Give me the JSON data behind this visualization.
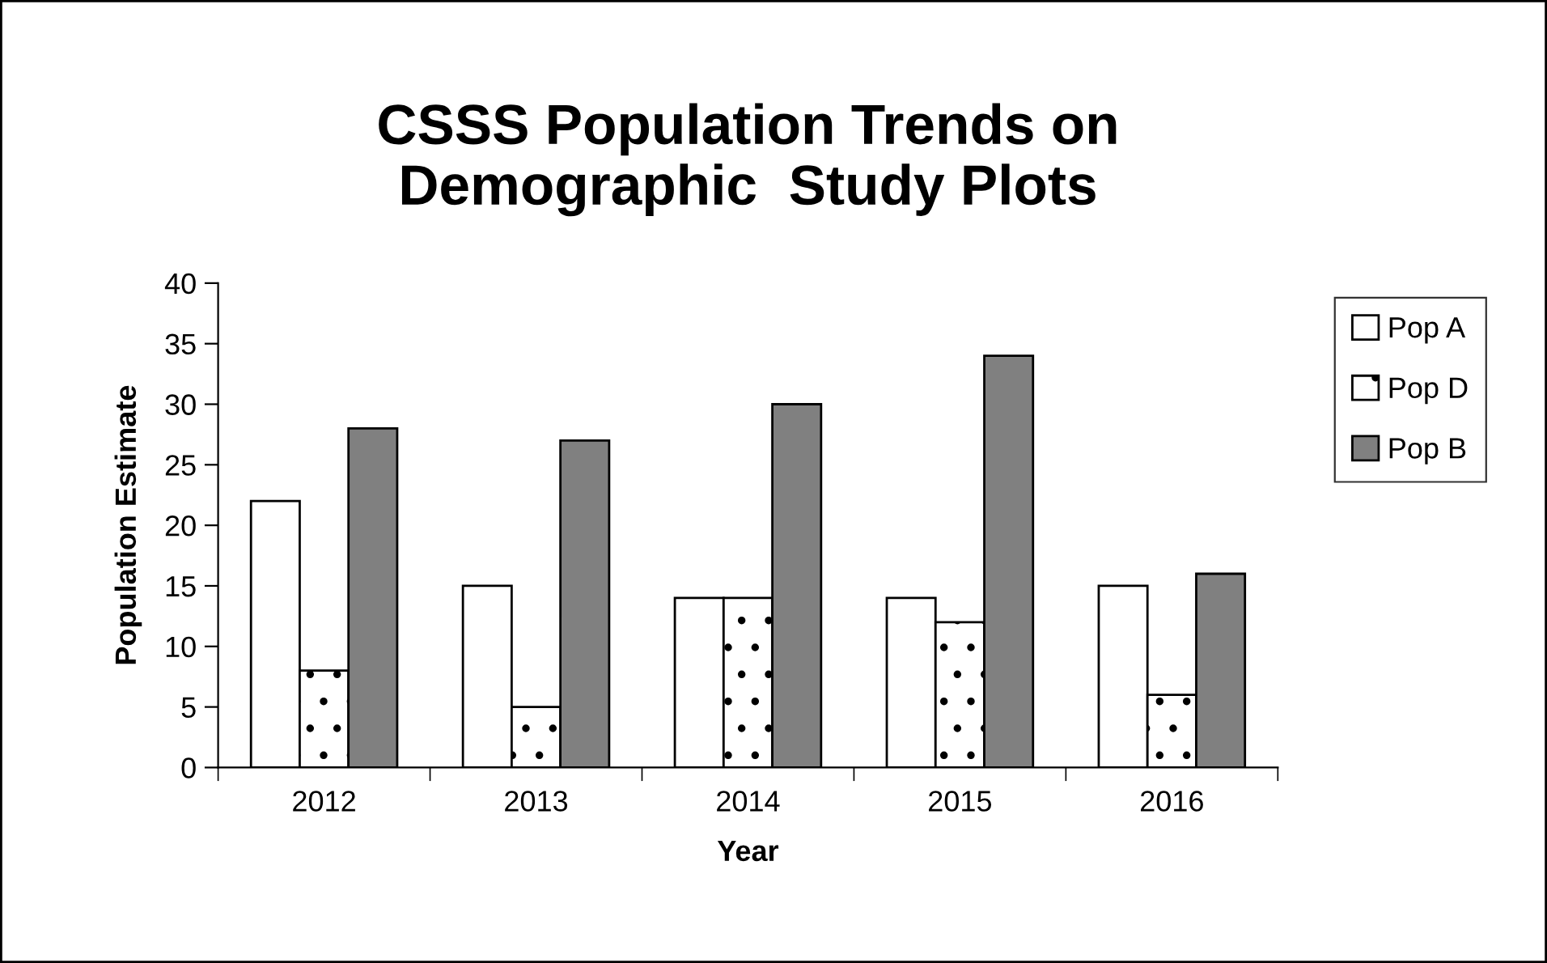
{
  "chart_data": {
    "type": "bar",
    "title": "CSSS Population Trends on\nDemographic  Study Plots",
    "xlabel": "Year",
    "ylabel": "Population Estimate",
    "categories": [
      "2012",
      "2013",
      "2014",
      "2015",
      "2016"
    ],
    "series": [
      {
        "name": "Pop A",
        "color": "#ffffff",
        "values": [
          22,
          15,
          14,
          14,
          15
        ]
      },
      {
        "name": "Pop D",
        "color": "#ffffff",
        "values": [
          8,
          5,
          14,
          12,
          6
        ]
      },
      {
        "name": "Pop B",
        "color": "#808080",
        "values": [
          28,
          27,
          30,
          34,
          16
        ]
      }
    ],
    "ylim": [
      0,
      40
    ],
    "yticks": [
      0,
      5,
      10,
      15,
      20,
      25,
      30,
      35,
      40
    ],
    "grid": false,
    "legend": "right"
  }
}
